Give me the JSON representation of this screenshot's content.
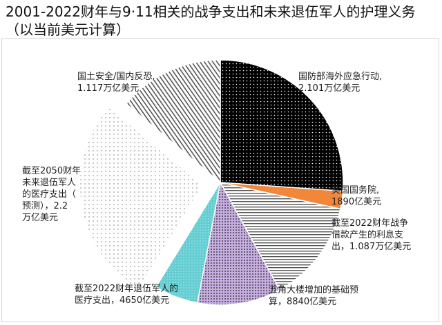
{
  "chart_data": {
    "type": "pie",
    "title": "2001-2022财年与9·11相关的战争支出和未来退伍军人的护理义务（以当前美元计算）",
    "slices": [
      {
        "label_lines": [
          "国防部海外应急行动,",
          "2.101万亿美元"
        ],
        "value": 2.101,
        "color": "#000000",
        "pattern": "dots-white-on-black",
        "exploded": false
      },
      {
        "label_lines": [
          "美国国务院,",
          "1890亿美元"
        ],
        "value": 0.189,
        "color": "#f0873a",
        "pattern": "solid",
        "exploded": false
      },
      {
        "label_lines": [
          "截至2022财年战争",
          "借款产生的利息支",
          "出，1.087万亿美元"
        ],
        "value": 1.087,
        "color": "#555555",
        "pattern": "horizontal-lines",
        "exploded": false
      },
      {
        "label_lines": [
          "五角大楼增加的基础预",
          "算，8840亿美元"
        ],
        "value": 0.884,
        "color": "#b79ad6",
        "pattern": "dots-black-on-purple",
        "exploded": false
      },
      {
        "label_lines": [
          "截至2022财年退伍军人的",
          "医疗支出，4650亿美元"
        ],
        "value": 0.465,
        "color": "#5fc9cf",
        "pattern": "dots-on-cyan",
        "exploded": false
      },
      {
        "label_lines": [
          "截至2050财年",
          "未来退伍军人",
          "的医疗支出（",
          "预测），2.2",
          "万亿美元"
        ],
        "value": 2.2,
        "color": "#bbbbbb",
        "pattern": "sparse-dots",
        "exploded": true
      },
      {
        "label_lines": [
          "国土安全/国内反恐,",
          "1.117万亿美元"
        ],
        "value": 1.117,
        "color": "#444444",
        "pattern": "diagonal-lines",
        "exploded": false
      }
    ]
  }
}
